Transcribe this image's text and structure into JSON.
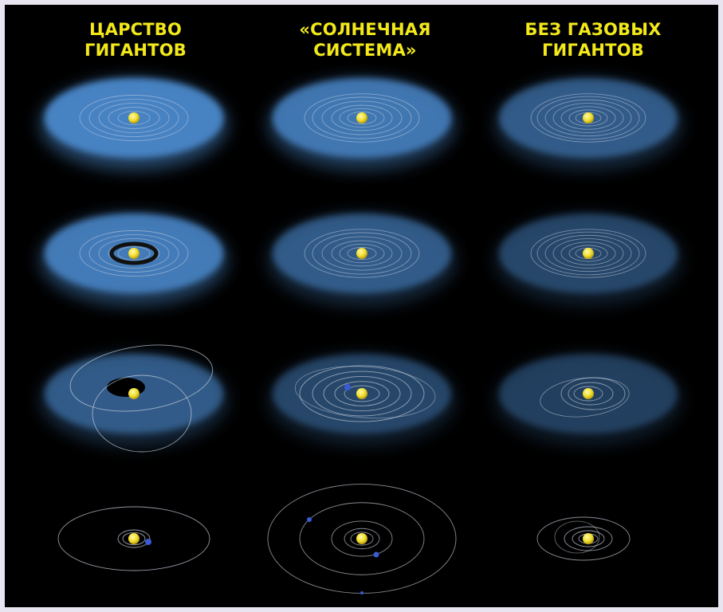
{
  "columns": [
    {
      "title": "ЦАРСТВО\nГИГАНТОВ"
    },
    {
      "title": "«СОЛНЕЧНАЯ\nСИСТЕМА»"
    },
    {
      "title": "БЕЗ ГАЗОВЫХ\nГИГАНТОВ"
    }
  ],
  "colors": {
    "background": "#000000",
    "frame": "#e9e5f0",
    "title": "#f2e81a",
    "disk_blue": "#4a86c8",
    "sun": "#f4e23a",
    "orbit": "#cfd6e2",
    "planet_blue": "#3b5bd6"
  }
}
